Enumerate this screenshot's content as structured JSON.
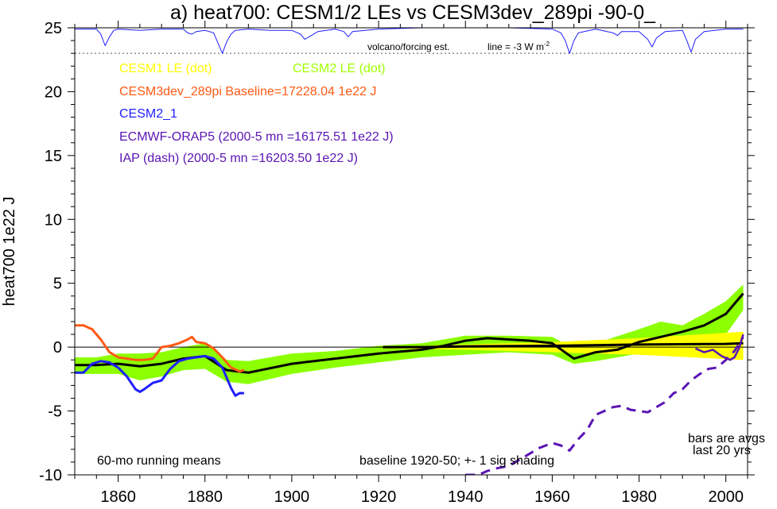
{
  "chart_data": {
    "type": "line",
    "title": "a) heat700: CESM1/2 LEs vs CESM3dev_289pi -90-0_",
    "ylabel": "heat700 1e22 J",
    "xlim": [
      1850,
      2005
    ],
    "ylim": [
      -10,
      25
    ],
    "xticks": [
      1860,
      1880,
      1900,
      1920,
      1940,
      1960,
      1980,
      2000
    ],
    "yticks": [
      -10,
      -5,
      0,
      5,
      10,
      15,
      20,
      25
    ],
    "legend": [
      {
        "text": "CESM1 LE (dot)",
        "color": "#ffff00"
      },
      {
        "text": "CESM2 LE (dot)",
        "color": "#a0ff00"
      },
      {
        "text": "CESM3dev_289pi Baseline=17228.04 1e22 J",
        "color": "#ff5a14"
      },
      {
        "text": "CESM2_1",
        "color": "#1f1fff"
      },
      {
        "text": "ECMWF-ORAP5 (2000-5 mn =16175.51 1e22 J)",
        "color": "#5a14b4"
      },
      {
        "text": "IAP (dash) (2000-5 mn =16203.50 1e22 J)",
        "color": "#5a14b4"
      }
    ],
    "annotations": {
      "volcano": "volcano/forcing est.",
      "line_label": "line = -3 W m",
      "line_label_sup": "-2",
      "running_means": "60-mo running means",
      "baseline": "baseline 1920-50; +- 1 sig shading",
      "bars_1": "bars are avgs",
      "bars_2": "last 20 yrs"
    },
    "volcano_ref_y": 23,
    "series": {
      "cesm2_band": {
        "x": [
          1850,
          1855,
          1860,
          1865,
          1870,
          1875,
          1880,
          1885,
          1890,
          1900,
          1910,
          1920,
          1930,
          1940,
          1950,
          1960,
          1965,
          1970,
          1980,
          1985,
          1990,
          1995,
          2000,
          2004
        ],
        "upper": [
          -0.8,
          -0.8,
          -0.5,
          -0.5,
          -0.4,
          0.0,
          0.3,
          -1.0,
          -1.1,
          -0.5,
          -0.3,
          0.1,
          0.3,
          0.9,
          0.9,
          0.8,
          -0.1,
          0.3,
          1.4,
          2.0,
          1.7,
          2.6,
          3.6,
          4.9
        ],
        "lower": [
          -2.1,
          -2.1,
          -2.1,
          -2.6,
          -2.3,
          -1.8,
          -1.7,
          -2.7,
          -2.9,
          -2.1,
          -1.6,
          -1.2,
          -0.8,
          -0.6,
          -0.4,
          -0.6,
          -1.3,
          -1.1,
          -0.5,
          -0.3,
          -0.2,
          0.3,
          1.0,
          2.9
        ]
      },
      "cesm1_band": {
        "x": [
          1921,
          1940,
          1960,
          1980,
          2004
        ],
        "upper": [
          0.0,
          0.2,
          0.4,
          0.7,
          1.2
        ],
        "lower": [
          -0.1,
          -0.2,
          -0.4,
          -0.6,
          -1.0
        ]
      },
      "cesm2_mean": {
        "name": "CESM2 LE",
        "color": "#000000",
        "x": [
          1850,
          1855,
          1860,
          1865,
          1870,
          1875,
          1880,
          1885,
          1890,
          1900,
          1910,
          1920,
          1930,
          1935,
          1940,
          1945,
          1950,
          1955,
          1960,
          1965,
          1970,
          1975,
          1980,
          1985,
          1990,
          1995,
          2000,
          2004
        ],
        "values": [
          -1.4,
          -1.4,
          -1.3,
          -1.5,
          -1.3,
          -0.9,
          -0.7,
          -1.8,
          -2.0,
          -1.3,
          -0.9,
          -0.5,
          -0.2,
          0.1,
          0.5,
          0.7,
          0.6,
          0.5,
          0.3,
          -0.9,
          -0.4,
          -0.2,
          0.4,
          0.8,
          1.2,
          1.7,
          2.6,
          4.2
        ]
      },
      "cesm1_mean": {
        "name": "CESM1 LE",
        "color": "#000000",
        "x": [
          1921,
          1930,
          1940,
          1960,
          1980,
          2000,
          2004
        ],
        "values": [
          0.0,
          0.0,
          0.05,
          0.1,
          0.2,
          0.25,
          0.3
        ]
      },
      "cesm3": {
        "name": "CESM3dev_289pi",
        "color": "#ff5a14",
        "x": [
          1850,
          1852,
          1854,
          1856,
          1858,
          1860,
          1862,
          1864,
          1866,
          1868,
          1870,
          1872,
          1874,
          1876,
          1877,
          1878,
          1880,
          1882,
          1884,
          1886,
          1888,
          1889
        ],
        "values": [
          1.7,
          1.7,
          1.4,
          0.6,
          -0.4,
          -0.8,
          -0.9,
          -1.0,
          -1.0,
          -0.9,
          0.0,
          0.1,
          0.3,
          0.6,
          0.8,
          0.4,
          0.3,
          -0.1,
          -0.8,
          -1.6,
          -1.9,
          -1.8
        ]
      },
      "cesm2_1": {
        "name": "CESM2_1",
        "color": "#1f1fff",
        "x": [
          1850,
          1852,
          1854,
          1856,
          1858,
          1860,
          1862,
          1864,
          1865,
          1866,
          1868,
          1870,
          1872,
          1874,
          1876,
          1878,
          1880,
          1882,
          1884,
          1886,
          1887,
          1888,
          1889
        ],
        "values": [
          -2.0,
          -2.0,
          -1.3,
          -1.1,
          -1.2,
          -1.6,
          -2.3,
          -3.3,
          -3.5,
          -3.3,
          -2.8,
          -2.6,
          -1.7,
          -1.1,
          -0.9,
          -0.8,
          -0.7,
          -0.9,
          -1.6,
          -3.2,
          -3.8,
          -3.6,
          -3.6
        ]
      },
      "orap5": {
        "name": "ECMWF-ORAP5",
        "color": "#5a14b4",
        "x": [
          1993,
          1995,
          1997,
          1999,
          2001,
          2002,
          2003,
          2004
        ],
        "values": [
          -0.1,
          -0.4,
          -0.2,
          -0.7,
          -1.0,
          -0.8,
          -0.1,
          1.0
        ]
      },
      "iap": {
        "name": "IAP",
        "color": "#5a14b4",
        "x": [
          1940,
          1943,
          1945,
          1947,
          1950,
          1953,
          1955,
          1957,
          1960,
          1962,
          1964,
          1966,
          1968,
          1970,
          1972,
          1974,
          1976,
          1978,
          1980,
          1982,
          1984,
          1986,
          1988,
          1990,
          1992,
          1994,
          1996,
          1998,
          2000,
          2002,
          2004
        ],
        "values": [
          -10.0,
          -10.0,
          -9.7,
          -9.5,
          -9.3,
          -8.7,
          -8.3,
          -7.9,
          -7.5,
          -7.7,
          -8.1,
          -7.2,
          -6.5,
          -5.3,
          -5.0,
          -4.7,
          -4.6,
          -4.9,
          -5.0,
          -5.1,
          -4.7,
          -4.3,
          -3.6,
          -3.3,
          -2.6,
          -2.1,
          -1.7,
          -1.6,
          -1.0,
          -0.3,
          0.8
        ]
      }
    },
    "volcano_series": {
      "x": [
        1850,
        1855,
        1856,
        1857,
        1858,
        1859,
        1860,
        1865,
        1870,
        1875,
        1876,
        1877,
        1878,
        1880,
        1882,
        1883,
        1884,
        1885,
        1886,
        1887,
        1890,
        1895,
        1900,
        1902,
        1903,
        1904,
        1906,
        1910,
        1912,
        1913,
        1914,
        1920,
        1930,
        1940,
        1950,
        1960,
        1962,
        1963,
        1964,
        1965,
        1966,
        1970,
        1974,
        1975,
        1976,
        1980,
        1982,
        1983,
        1984,
        1986,
        1990,
        1991,
        1992,
        1993,
        1995,
        2000,
        2004
      ],
      "values": [
        24.9,
        24.9,
        24.5,
        23.6,
        24.3,
        24.8,
        24.9,
        24.8,
        24.9,
        24.9,
        24.6,
        24.5,
        24.7,
        24.8,
        24.6,
        23.8,
        23.0,
        23.9,
        24.5,
        24.8,
        24.9,
        24.8,
        24.8,
        24.5,
        24.1,
        24.3,
        24.7,
        24.9,
        24.7,
        24.3,
        24.7,
        24.9,
        25.0,
        25.0,
        25.0,
        24.9,
        24.6,
        24.0,
        23.0,
        24.0,
        24.6,
        24.9,
        24.6,
        24.4,
        24.7,
        24.7,
        24.1,
        23.5,
        24.2,
        24.7,
        24.8,
        24.0,
        23.1,
        24.1,
        24.7,
        24.9,
        24.9
      ]
    }
  }
}
